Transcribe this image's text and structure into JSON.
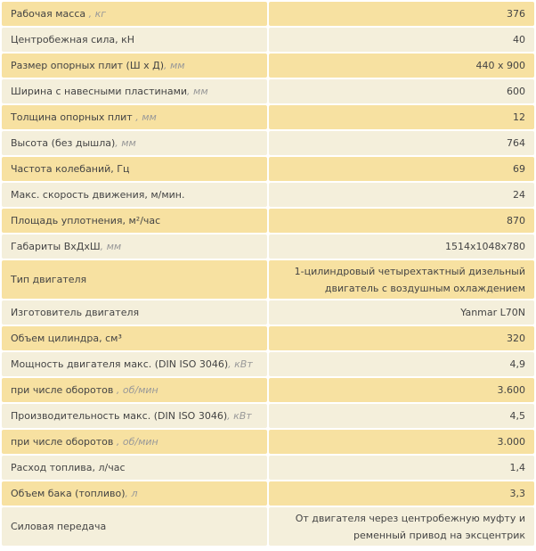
{
  "table": {
    "rows": [
      {
        "label": "Рабочая масса ",
        "unit": ", кг",
        "value": "376"
      },
      {
        "label": "Центробежная сила, кН",
        "value": "40"
      },
      {
        "label": "Размер опорных плит (Ш х Д)",
        "unit": ", мм",
        "value": "440 x 900"
      },
      {
        "label": "Ширина с навесными пластинами",
        "unit": ", мм",
        "value": "600"
      },
      {
        "label": "Толщина опорных плит ",
        "unit": ", мм",
        "value": "12"
      },
      {
        "label": "Высота (без дышла)",
        "unit": ", мм",
        "value": "764"
      },
      {
        "label": "Частота колебаний, Гц",
        "value": "69"
      },
      {
        "label": "Макс. скорость движения, м/мин.",
        "value": "24"
      },
      {
        "label": "Площадь уплотнения, м²/час",
        "value": "870"
      },
      {
        "label": "Габариты ВхДхШ",
        "unit": ", мм",
        "value": "1514x1048x780"
      },
      {
        "label": "Тип двигателя",
        "value": "1-цилиндровый четырехтактный дизельный двигатель с воздушным охлаждением"
      },
      {
        "label": "Изготовитель двигателя",
        "value": "Yanmar L70N"
      },
      {
        "label": "Объем цилиндра, см³",
        "value": "320"
      },
      {
        "label": "Мощность двигателя макс. (DIN ISO 3046)",
        "unit": ", кВт",
        "value": "4,9"
      },
      {
        "label": "при числе оборотов ",
        "unit": ", об/мин",
        "value": "3.600"
      },
      {
        "label": "Производительность макс. (DIN ISO 3046)",
        "unit": ", кВт",
        "value": "4,5"
      },
      {
        "label": "при числе оборотов ",
        "unit": ", об/мин",
        "value": "3.000"
      },
      {
        "label": "Расход топлива, л/час",
        "value": "1,4"
      },
      {
        "label": "Объем бака (топливо)",
        "unit": ", л",
        "value": "3,3"
      },
      {
        "label": "Силовая передача",
        "value": "От двигателя через центробежную муфту и ременный привод на эксцентрик"
      }
    ]
  }
}
